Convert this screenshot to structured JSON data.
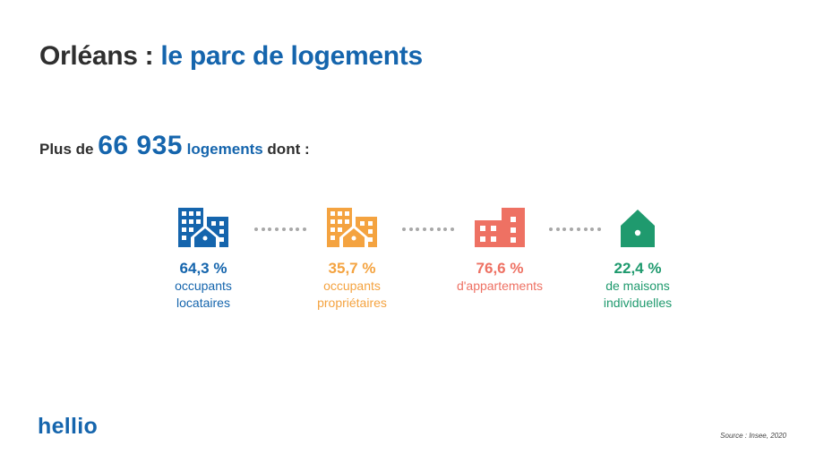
{
  "title": {
    "part1": "Orléans : ",
    "part2": "le parc de logements"
  },
  "subtitle": {
    "prefix": "Plus de ",
    "count": "66 935",
    "unit": " logements",
    "suffix": " dont :"
  },
  "stats": [
    {
      "value": "64,3 %",
      "line1": "occupants",
      "line2": "locataires",
      "color": "#1565ad",
      "icon": "apartment-building-house-icon"
    },
    {
      "value": "35,7 %",
      "line1": "occupants",
      "line2": "propriétaires",
      "color": "#f4a340",
      "icon": "apartment-building-house-icon"
    },
    {
      "value": "76,6 %",
      "line1": "d'appartements",
      "line2": "",
      "color": "#ee7163",
      "icon": "apartment-building-icon"
    },
    {
      "value": "22,4 %",
      "line1": "de maisons",
      "line2": "individuelles",
      "color": "#1f9a6e",
      "icon": "house-icon"
    }
  ],
  "logo": "hellio",
  "source": "Source : Insee, 2020"
}
